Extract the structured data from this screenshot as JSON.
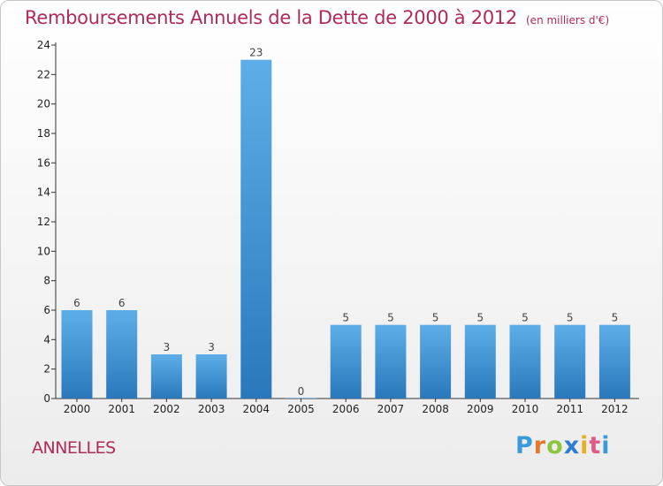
{
  "header": {
    "title": "Remboursements Annuels de la Dette de 2000 à 2012",
    "subtitle": "(en milliers d'€)"
  },
  "footer": {
    "commune": "ANNELLES",
    "logo": "Proxiti"
  },
  "colors": {
    "title": "#b02a5a",
    "bar_top": "#5daee8",
    "bar_bottom": "#2a78bb",
    "axis": "#333333"
  },
  "chart_data": {
    "type": "bar",
    "title": "Remboursements Annuels de la Dette de 2000 à 2012",
    "subtitle": "(en milliers d'€)",
    "categories": [
      "2000",
      "2001",
      "2002",
      "2003",
      "2004",
      "2005",
      "2006",
      "2007",
      "2008",
      "2009",
      "2010",
      "2011",
      "2012"
    ],
    "values": [
      6,
      6,
      3,
      3,
      23,
      0,
      5,
      5,
      5,
      5,
      5,
      5,
      5
    ],
    "data_labels": [
      "6",
      "6",
      "3",
      "3",
      "23",
      "0",
      "5",
      "5",
      "5",
      "5",
      "5",
      "5",
      "5"
    ],
    "yticks": [
      "0",
      "2",
      "4",
      "6",
      "8",
      "10",
      "12",
      "14",
      "16",
      "18",
      "20",
      "22",
      "24"
    ],
    "ylim": [
      0,
      24
    ],
    "grid": false,
    "legend": "none"
  }
}
